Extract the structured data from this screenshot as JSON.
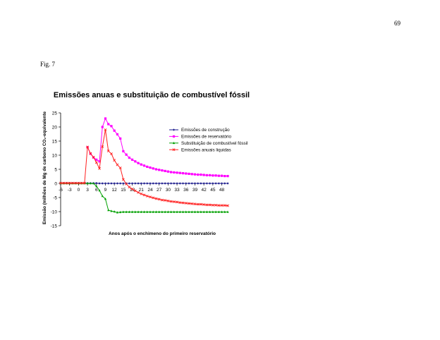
{
  "page": {
    "page_number": "69",
    "figure_label": "Fig. 7"
  },
  "chart_data": {
    "type": "line",
    "title": "Emissões anuas e substituição de combustível fóssil",
    "xlabel": "Anos após o enchimeno do primeiro reservatório",
    "ylabel": "Emissão (milhões de Mg de carbono CO₂-equivalente",
    "x_range": [
      -6,
      50
    ],
    "ylim": [
      -15,
      25
    ],
    "y_ticks": [
      -15,
      -10,
      -5,
      0,
      5,
      10,
      15,
      20,
      25
    ],
    "x_ticks": [
      -6,
      -3,
      0,
      3,
      6,
      9,
      12,
      15,
      18,
      21,
      24,
      27,
      30,
      33,
      36,
      39,
      42,
      45,
      48
    ],
    "grid": false,
    "legend_position": "right",
    "series": [
      {
        "name": "Emissões de construção",
        "color": "#1a1a8c",
        "marker": "diamond",
        "x": [
          -6,
          -5,
          -4,
          -3,
          -2,
          -1,
          0,
          1,
          2,
          3,
          4,
          5,
          6,
          7,
          8,
          9,
          10,
          11,
          12,
          13,
          14,
          15,
          16,
          17,
          18,
          19,
          20,
          21,
          22,
          23,
          24,
          25,
          26,
          27,
          28,
          29,
          30,
          31,
          32,
          33,
          34,
          35,
          36,
          37,
          38,
          39,
          40,
          41,
          42,
          43,
          44,
          45,
          46,
          47,
          48,
          49,
          50
        ],
        "y": [
          0,
          0.1,
          0.1,
          0.1,
          0.1,
          0.1,
          0.1,
          0.1,
          0.1,
          0.1,
          0.1,
          0.1,
          0.1,
          0,
          0,
          0,
          0,
          0,
          0,
          0,
          0,
          0,
          0,
          0,
          0,
          0,
          0,
          0,
          0,
          0,
          0,
          0,
          0,
          0,
          0,
          0,
          0,
          0,
          0,
          0,
          0,
          0,
          0,
          0,
          0,
          0,
          0,
          0,
          0,
          0,
          0,
          0,
          0,
          0,
          0,
          0,
          0
        ]
      },
      {
        "name": "Emissões de reservatório",
        "color": "#ff00ff",
        "marker": "square",
        "x": [
          3,
          4,
          5,
          6,
          7,
          8,
          9,
          10,
          11,
          12,
          13,
          14,
          15,
          16,
          17,
          18,
          19,
          20,
          21,
          22,
          23,
          24,
          25,
          26,
          27,
          28,
          29,
          30,
          31,
          32,
          33,
          34,
          35,
          36,
          37,
          38,
          39,
          40,
          41,
          42,
          43,
          44,
          45,
          46,
          47,
          48,
          49,
          50
        ],
        "y": [
          12.8,
          10.5,
          9.2,
          8.4,
          7.8,
          20,
          23,
          21,
          20.3,
          18.7,
          17.4,
          15.9,
          11.4,
          10.2,
          9.1,
          8.4,
          7.8,
          7.2,
          6.7,
          6.3,
          5.9,
          5.6,
          5.3,
          5.0,
          4.8,
          4.6,
          4.4,
          4.2,
          4.0,
          3.9,
          3.8,
          3.7,
          3.6,
          3.5,
          3.4,
          3.3,
          3.2,
          3.1,
          3.1,
          3.0,
          2.9,
          2.9,
          2.8,
          2.8,
          2.7,
          2.7,
          2.6,
          2.6
        ]
      },
      {
        "name": "Substituição de combustível fóssil",
        "color": "#00a000",
        "marker": "triangle",
        "x": [
          -6,
          -5,
          -4,
          -3,
          -2,
          -1,
          0,
          1,
          2,
          3,
          4,
          5,
          6,
          7,
          8,
          9,
          10,
          11,
          12,
          13,
          14,
          15,
          16,
          17,
          18,
          19,
          20,
          21,
          22,
          23,
          24,
          25,
          26,
          27,
          28,
          29,
          30,
          31,
          32,
          33,
          34,
          35,
          36,
          37,
          38,
          39,
          40,
          41,
          42,
          43,
          44,
          45,
          46,
          47,
          48,
          49,
          50
        ],
        "y": [
          0,
          0,
          0,
          0,
          0,
          0,
          0,
          0,
          0,
          0,
          0,
          0,
          -1,
          -2.5,
          -4.5,
          -5.5,
          -9.5,
          -9.8,
          -10,
          -10.3,
          -10.2,
          -10.1,
          -10.1,
          -10.1,
          -10.1,
          -10.1,
          -10.1,
          -10.1,
          -10.1,
          -10.1,
          -10.1,
          -10.1,
          -10.1,
          -10.1,
          -10.1,
          -10.1,
          -10.1,
          -10.1,
          -10.1,
          -10.1,
          -10.1,
          -10.1,
          -10.1,
          -10.1,
          -10.1,
          -10.1,
          -10.1,
          -10.1,
          -10.1,
          -10.1,
          -10.1,
          -10.1,
          -10.1,
          -10.1,
          -10.1,
          -10.1,
          -10.1
        ]
      },
      {
        "name": "Emissões anuais liquidas",
        "color": "#ff2020",
        "marker": "x",
        "x": [
          -6,
          -5,
          -4,
          -3,
          -2,
          -1,
          0,
          1,
          2,
          3,
          4,
          5,
          6,
          7,
          8,
          9,
          10,
          11,
          12,
          13,
          14,
          15,
          16,
          17,
          18,
          19,
          20,
          21,
          22,
          23,
          24,
          25,
          26,
          27,
          28,
          29,
          30,
          31,
          32,
          33,
          34,
          35,
          36,
          37,
          38,
          39,
          40,
          41,
          42,
          43,
          44,
          45,
          46,
          47,
          48,
          49,
          50
        ],
        "y": [
          0.1,
          0.1,
          0.1,
          0.1,
          0.1,
          0.1,
          0.1,
          0.1,
          0.1,
          12.9,
          10.6,
          9.3,
          7.4,
          5.3,
          13,
          19,
          11.5,
          10.5,
          8.2,
          6.6,
          5.5,
          1.4,
          -0.2,
          -1.3,
          -2.0,
          -2.6,
          -3.2,
          -3.7,
          -4.1,
          -4.5,
          -4.8,
          -5.1,
          -5.4,
          -5.6,
          -5.9,
          -6.0,
          -6.2,
          -6.4,
          -6.5,
          -6.6,
          -6.8,
          -6.9,
          -7.0,
          -7.1,
          -7.2,
          -7.3,
          -7.4,
          -7.4,
          -7.5,
          -7.6,
          -7.6,
          -7.7,
          -7.7,
          -7.8,
          -7.8,
          -7.8,
          -7.9
        ]
      }
    ]
  }
}
